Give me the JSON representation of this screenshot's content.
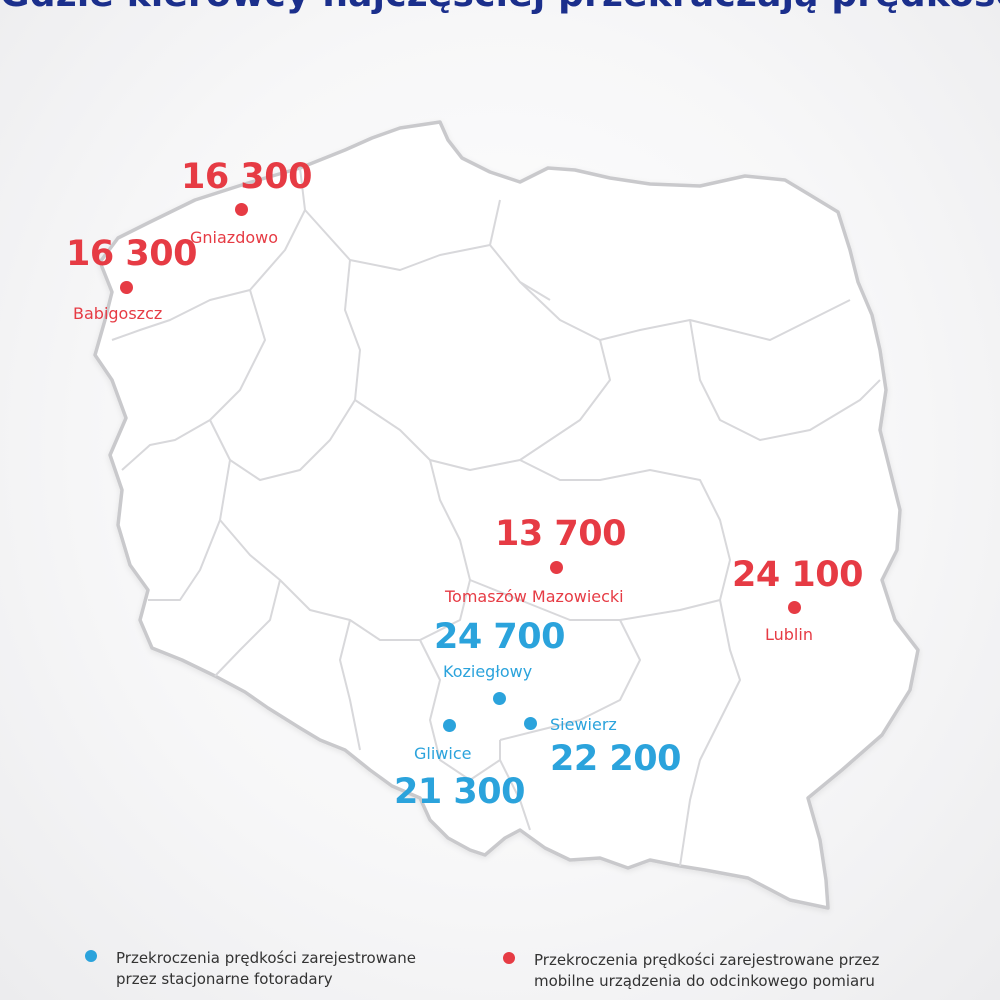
{
  "title": "Gdzie kierowcy najczęściej przekraczają prędkość?",
  "colors": {
    "mobile": "#e63b44",
    "stationary": "#2ba3dc",
    "title": "#1b2f8c"
  },
  "markers": [
    {
      "value": "16 300",
      "city": "Gniazdowo",
      "type": "mobile"
    },
    {
      "value": "16 300",
      "city": "Babigoszcz",
      "type": "mobile"
    },
    {
      "value": "13 700",
      "city": "Tomaszów Mazowiecki",
      "type": "mobile"
    },
    {
      "value": "24 100",
      "city": "Lublin",
      "type": "mobile"
    },
    {
      "value": "24 700",
      "city": "Koziegłowy",
      "type": "stationary"
    },
    {
      "value": "22 200",
      "city": "Siewierz",
      "type": "stationary"
    },
    {
      "value": "21 300",
      "city": "Gliwice",
      "type": "stationary"
    }
  ],
  "legend": {
    "stationary": {
      "line1": "Przekroczenia prędkości zarejestrowane",
      "line2": "przez stacjonarne fotoradary"
    },
    "mobile": {
      "line1": "Przekroczenia prędkości zarejestrowane przez",
      "line2": "mobilne urządzenia do odcinkowego pomiaru"
    }
  }
}
